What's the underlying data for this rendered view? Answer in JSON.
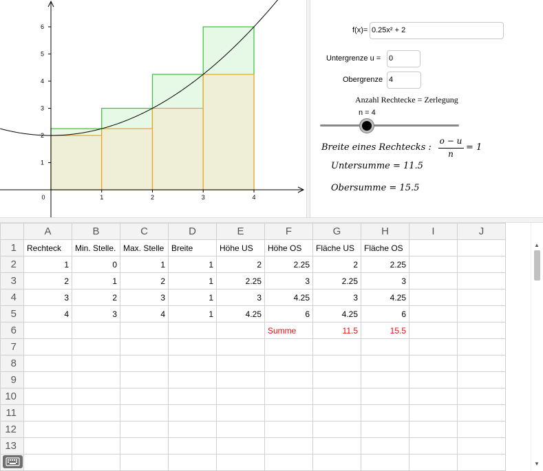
{
  "graphics": {
    "x_ticks": [
      "0",
      "1",
      "2",
      "3",
      "4"
    ],
    "y_ticks": [
      "1",
      "2",
      "3",
      "4",
      "5",
      "6"
    ],
    "function_label": "f(x)= 0.25x² + 2",
    "colors": {
      "upper_rect": "#2fc42f",
      "lower_rect": "#f0a020",
      "upper_fill": "#e6f8e6",
      "lower_fill": "#efefd8",
      "curve": "#000000"
    }
  },
  "algebra": {
    "f_label": "f(x)=",
    "f_value": "0.25x² + 2",
    "untergrenze_label": "Untergrenze u =",
    "untergrenze_value": "0",
    "obergrenze_label": "Obergrenze",
    "obergrenze_value": "4",
    "anzahl_text": "Anzahl Rechtecke = Zerlegung",
    "slider_label": "n = 4",
    "slider_value": 4,
    "breite_text": "Breite eines Rechtecks :",
    "breite_num": "o − u",
    "breite_den": "n",
    "breite_result": "= 1",
    "untersumme": "Untersumme = 11.5",
    "obersumme": "Obersumme = 15.5"
  },
  "sheet": {
    "columns": [
      "A",
      "B",
      "C",
      "D",
      "E",
      "F",
      "G",
      "H",
      "I",
      "J"
    ],
    "rows": [
      [
        "Rechteck",
        "Min. Stelle.",
        "Max. Stelle",
        "Breite",
        "Höhe US",
        "Höhe OS",
        "Fläche US",
        "Fläche OS",
        "",
        ""
      ],
      [
        "1",
        "0",
        "1",
        "1",
        "2",
        "2.25",
        "2",
        "2.25",
        "",
        ""
      ],
      [
        "2",
        "1",
        "2",
        "1",
        "2.25",
        "3",
        "2.25",
        "3",
        "",
        ""
      ],
      [
        "3",
        "2",
        "3",
        "1",
        "3",
        "4.25",
        "3",
        "4.25",
        "",
        ""
      ],
      [
        "4",
        "3",
        "4",
        "1",
        "4.25",
        "6",
        "4.25",
        "6",
        "",
        ""
      ],
      [
        "",
        "",
        "",
        "",
        "",
        "Summe",
        "11.5",
        "15.5",
        "",
        ""
      ],
      [
        "",
        "",
        "",
        "",
        "",
        "",
        "",
        "",
        "",
        ""
      ],
      [
        "",
        "",
        "",
        "",
        "",
        "",
        "",
        "",
        "",
        ""
      ],
      [
        "",
        "",
        "",
        "",
        "",
        "",
        "",
        "",
        "",
        ""
      ],
      [
        "",
        "",
        "",
        "",
        "",
        "",
        "",
        "",
        "",
        ""
      ],
      [
        "",
        "",
        "",
        "",
        "",
        "",
        "",
        "",
        "",
        ""
      ],
      [
        "",
        "",
        "",
        "",
        "",
        "",
        "",
        "",
        "",
        ""
      ],
      [
        "",
        "",
        "",
        "",
        "",
        "",
        "",
        "",
        "",
        ""
      ],
      [
        "",
        "",
        "",
        "",
        "",
        "",
        "",
        "",
        "",
        ""
      ]
    ],
    "row_numbers": [
      "1",
      "2",
      "3",
      "4",
      "5",
      "6",
      "7",
      "8",
      "9",
      "10",
      "11",
      "12",
      "13",
      "14"
    ]
  },
  "keyboard_icon": "keyboard-icon"
}
